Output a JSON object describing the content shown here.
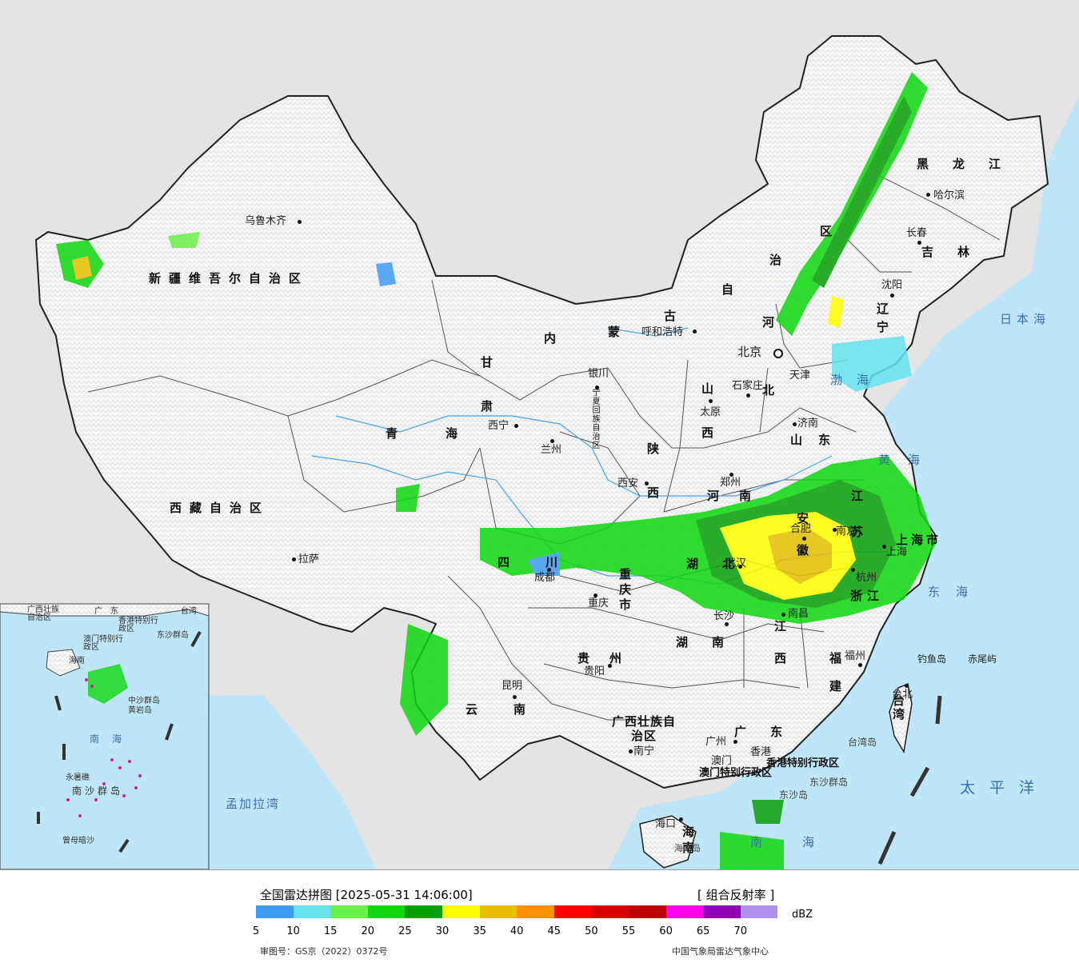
{
  "map": {
    "regions": {
      "xinjiang": "新疆维吾尔自治区",
      "xizang": "西藏自治区",
      "qinghai": "青海",
      "gansu": "甘肃",
      "neimenggu_1": "内",
      "neimenggu_2": "蒙",
      "neimenggu_3": "古",
      "neimenggu_4": "自",
      "neimenggu_5": "治",
      "neimenggu_6": "区",
      "ningxia": "宁夏回族自治区",
      "shaanxi": "陕西",
      "shanxi": "山西",
      "hebei": "河北",
      "shandong": "山东",
      "henan": "河南",
      "heilongjiang": "黑龙江",
      "jilin": "吉林",
      "liaoning": "辽宁",
      "sichuan": "四川",
      "chongqing": "重庆市",
      "hubei": "湖北",
      "hunan": "湖南",
      "anhui": "安徽",
      "jiangsu": "江苏",
      "zhejiang": "浙江",
      "shanghai": "上海市",
      "jiangxi": "江西",
      "fujian": "福建",
      "guizhou": "贵州",
      "yunnan": "云南",
      "guangxi": "广西壮族自治区",
      "guangdong": "广东",
      "hainan": "海南",
      "taiwan": "台湾",
      "hongkong": "香港特别行政区",
      "macao": "澳门特别行政区"
    },
    "cities": {
      "urumqi": "乌鲁木齐",
      "lhasa": "拉萨",
      "xining": "西宁",
      "lanzhou": "兰州",
      "yinchuan": "银川",
      "hohhot": "呼和浩特",
      "beijing": "北京",
      "tianjin": "天津",
      "shijiazhuang": "石家庄",
      "taiyuan": "太原",
      "jinan": "济南",
      "zhengzhou": "郑州",
      "xian": "西安",
      "chengdu": "成都",
      "chongqing": "重庆",
      "wuhan": "武汉",
      "changsha": "长沙",
      "hefei": "合肥",
      "nanjing": "南京",
      "shanghai": "上海",
      "hangzhou": "杭州",
      "nanchang": "南昌",
      "fuzhou": "福州",
      "taipei": "台北",
      "guiyang": "贵阳",
      "kunming": "昆明",
      "nanning": "南宁",
      "guangzhou": "广州",
      "hongkong": "香港",
      "macao": "澳门",
      "haikou": "海口",
      "harbin": "哈尔滨",
      "changchun": "长春",
      "shenyang": "沈阳"
    },
    "water": {
      "sea_of_japan": "日本海",
      "bohai": "渤海",
      "yellow_sea": "黄海",
      "east_china_sea": "东海",
      "pacific": "太平洋",
      "south_china_sea": "南海",
      "bay_of_bengal": "孟加拉湾"
    },
    "islands": {
      "diaoyu": "钓鱼岛",
      "chiwei": "赤尾屿",
      "taiwan_island": "台湾岛",
      "dongsha_islands": "东沙群岛",
      "dongsha": "东沙岛",
      "hainan_island": "海南岛"
    },
    "inset": {
      "guangxi": "广西壮族自治区",
      "guangdong": "广东",
      "hongkong": "香港特别行政区",
      "macao": "澳门特别行政区",
      "taiwan": "台湾",
      "dongsha": "东沙群岛",
      "hainan": "海南",
      "sea": "南海",
      "zhongsha": "中沙群岛",
      "huangyan": "黄岩岛",
      "nansha": "南沙群岛",
      "yongshu": "永暑礁",
      "zengmu": "曾母暗沙"
    }
  },
  "legend": {
    "title": "全国雷达拼图 [2025-05-31 14:06:00]",
    "product": "[ 组合反射率 ]",
    "unit": "dBZ",
    "ticks": [
      "5",
      "10",
      "15",
      "20",
      "25",
      "30",
      "35",
      "40",
      "45",
      "50",
      "55",
      "60",
      "65",
      "70"
    ],
    "colors": [
      "#3e9bf2",
      "#66e3ee",
      "#6cf04a",
      "#0fd80f",
      "#08a008",
      "#ffff00",
      "#e6c000",
      "#ff9000",
      "#ff0000",
      "#d80000",
      "#c00000",
      "#ff00f0",
      "#9000b4",
      "#ad90f0"
    ],
    "review_no": "审图号：GS京（2022）0372号",
    "source": "中国气象局雷达气象中心"
  }
}
